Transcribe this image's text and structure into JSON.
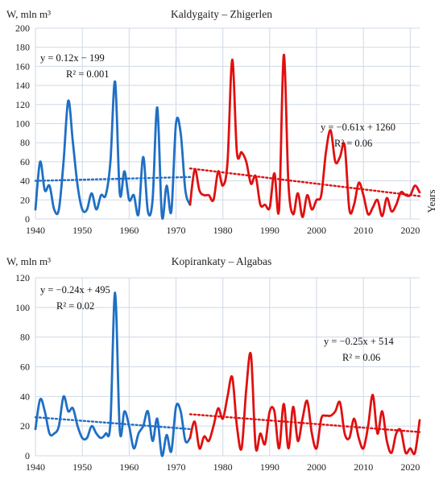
{
  "colors": {
    "period1": "#1f6fc4",
    "period2": "#e01010",
    "grid": "#cfd9e6"
  },
  "chart_data": [
    {
      "type": "line",
      "title": "Kaldygaity – Zhigerlen",
      "ylabel": "W, mln m³",
      "xlabel": "Years",
      "xlim": [
        1940,
        2022
      ],
      "ylim": [
        0,
        200
      ],
      "xticks": [
        1940,
        1950,
        1960,
        1970,
        1980,
        1990,
        2000,
        2010,
        2020
      ],
      "yticks": [
        0,
        20,
        40,
        60,
        80,
        100,
        120,
        140,
        160,
        180,
        200
      ],
      "grid": true,
      "series": [
        {
          "color": "#1f6fc4",
          "x": [
            1940,
            1941,
            1942,
            1943,
            1944,
            1945,
            1946,
            1947,
            1948,
            1949,
            1950,
            1951,
            1952,
            1953,
            1954,
            1955,
            1956,
            1957,
            1958,
            1959,
            1960,
            1961,
            1962,
            1963,
            1964,
            1965,
            1966,
            1967,
            1968,
            1969,
            1970,
            1971,
            1972,
            1973
          ],
          "y": [
            10,
            60,
            30,
            35,
            10,
            10,
            60,
            124,
            80,
            35,
            10,
            10,
            27,
            10,
            25,
            25,
            60,
            144,
            27,
            50,
            20,
            25,
            5,
            65,
            8,
            20,
            117,
            3,
            35,
            8,
            100,
            90,
            30,
            15
          ]
        },
        {
          "color": "#e01010",
          "x": [
            1973,
            1974,
            1975,
            1976,
            1977,
            1978,
            1979,
            1980,
            1981,
            1982,
            1983,
            1984,
            1985,
            1986,
            1987,
            1988,
            1989,
            1990,
            1991,
            1992,
            1993,
            1994,
            1995,
            1996,
            1997,
            1998,
            1999,
            2000,
            2001,
            2002,
            2003,
            2004,
            2005,
            2006,
            2007,
            2008,
            2009,
            2010,
            2011,
            2012,
            2013,
            2014,
            2015,
            2016,
            2017,
            2018,
            2019,
            2020,
            2021,
            2022
          ],
          "y": [
            15,
            52,
            30,
            25,
            25,
            20,
            50,
            35,
            60,
            167,
            70,
            70,
            60,
            37,
            45,
            15,
            15,
            12,
            48,
            10,
            172,
            37,
            5,
            27,
            2,
            25,
            10,
            20,
            25,
            70,
            93,
            60,
            65,
            77,
            10,
            15,
            38,
            25,
            5,
            12,
            20,
            3,
            22,
            8,
            15,
            28,
            25,
            25,
            35,
            28
          ]
        }
      ],
      "trendlines": [
        {
          "color": "#1f6fc4",
          "label": "y = 0.12x − 199",
          "r2": "R² = 0.001",
          "x": [
            1940,
            1973
          ],
          "y": [
            40,
            44
          ]
        },
        {
          "color": "#e01010",
          "label": "y = −0.61x + 1260",
          "r2": "R² = 0.06",
          "x": [
            1973,
            2022
          ],
          "y": [
            53,
            24
          ]
        }
      ]
    },
    {
      "type": "line",
      "title": "Kopirankaty – Algabas",
      "ylabel": "W, mln m³",
      "xlabel": "",
      "xlim": [
        1940,
        2022
      ],
      "ylim": [
        0,
        120
      ],
      "xticks": [
        1940,
        1950,
        1960,
        1970,
        1980,
        1990,
        2000,
        2010,
        2020
      ],
      "yticks": [
        0,
        20,
        40,
        60,
        80,
        100,
        120
      ],
      "grid": true,
      "series": [
        {
          "color": "#1f6fc4",
          "x": [
            1940,
            1941,
            1942,
            1943,
            1944,
            1945,
            1946,
            1947,
            1948,
            1949,
            1950,
            1951,
            1952,
            1953,
            1954,
            1955,
            1956,
            1957,
            1958,
            1959,
            1960,
            1961,
            1962,
            1963,
            1964,
            1965,
            1966,
            1967,
            1968,
            1969,
            1970,
            1971,
            1972,
            1973
          ],
          "y": [
            18,
            38,
            30,
            15,
            15,
            20,
            40,
            30,
            32,
            20,
            12,
            12,
            20,
            15,
            12,
            15,
            22,
            110,
            17,
            30,
            20,
            5,
            15,
            20,
            30,
            10,
            25,
            0,
            14,
            3,
            33,
            30,
            10,
            12
          ]
        },
        {
          "color": "#e01010",
          "x": [
            1973,
            1974,
            1975,
            1976,
            1977,
            1978,
            1979,
            1980,
            1981,
            1982,
            1983,
            1984,
            1985,
            1986,
            1987,
            1988,
            1989,
            1990,
            1991,
            1992,
            1993,
            1994,
            1995,
            1996,
            1997,
            1998,
            1999,
            2000,
            2001,
            2002,
            2003,
            2004,
            2005,
            2006,
            2007,
            2008,
            2009,
            2010,
            2011,
            2012,
            2013,
            2014,
            2015,
            2016,
            2017,
            2018,
            2019,
            2020,
            2021,
            2022
          ],
          "y": [
            12,
            23,
            5,
            13,
            10,
            20,
            32,
            25,
            40,
            53,
            20,
            5,
            45,
            68,
            6,
            15,
            8,
            30,
            30,
            5,
            35,
            5,
            33,
            10,
            25,
            37,
            15,
            5,
            25,
            27,
            27,
            30,
            36,
            15,
            12,
            25,
            12,
            5,
            20,
            41,
            15,
            30,
            10,
            2,
            15,
            17,
            2,
            5,
            2,
            24
          ]
        }
      ],
      "trendlines": [
        {
          "color": "#1f6fc4",
          "label": "y = −0.24x + 495",
          "r2": "R² = 0.02",
          "x": [
            1940,
            1973
          ],
          "y": [
            26,
            18
          ]
        },
        {
          "color": "#e01010",
          "label": "y = −0.25x + 514",
          "r2": "R² = 0.06",
          "x": [
            1973,
            2022
          ],
          "y": [
            28,
            16
          ]
        }
      ]
    }
  ]
}
